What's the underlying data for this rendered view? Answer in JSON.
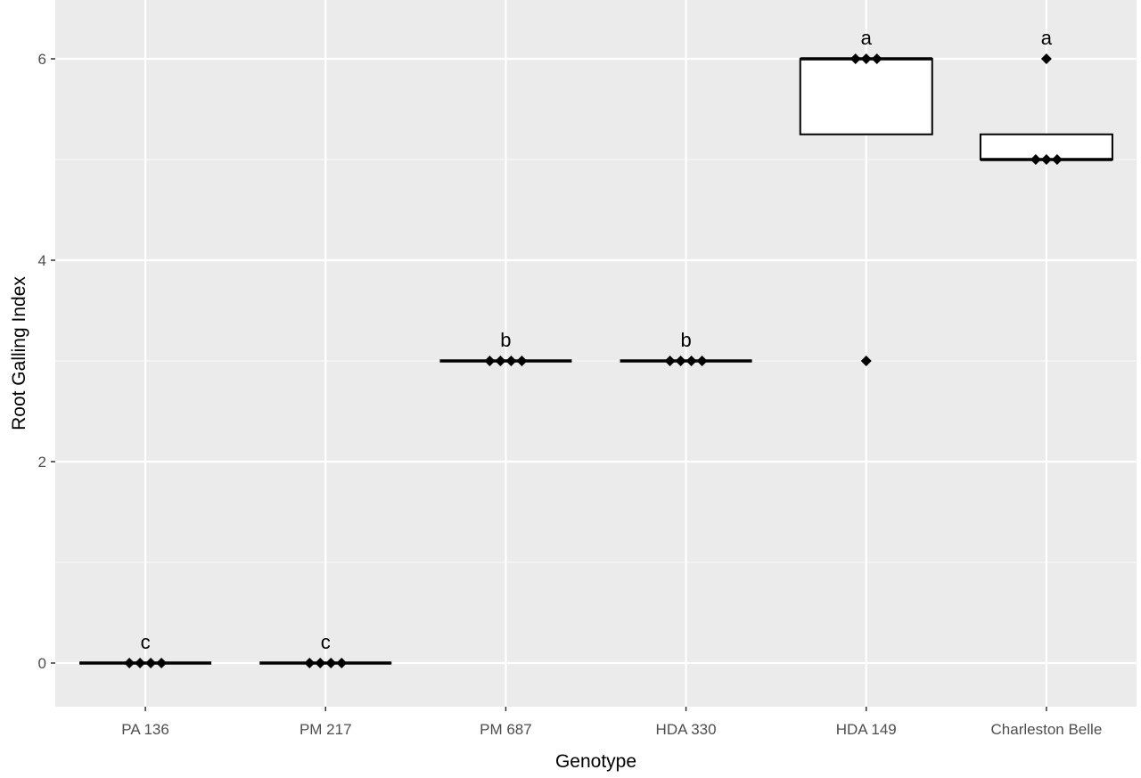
{
  "chart_data": {
    "type": "box",
    "title": "",
    "xlabel": "Genotype",
    "ylabel": "Root Galling Index",
    "categories": [
      "PA 136",
      "PM 217",
      "PM 687",
      "HDA 330",
      "HDA 149",
      "Charleston Belle"
    ],
    "ylim": [
      -0.4,
      6.6
    ],
    "yticks": [
      0,
      2,
      4,
      6
    ],
    "grid": true,
    "boxes": [
      {
        "category": "PA 136",
        "q1": 0,
        "median": 0,
        "q3": 0,
        "points": [
          0,
          0,
          0,
          0
        ],
        "letter": "c"
      },
      {
        "category": "PM 217",
        "q1": 0,
        "median": 0,
        "q3": 0,
        "points": [
          0,
          0,
          0,
          0
        ],
        "letter": "c"
      },
      {
        "category": "PM 687",
        "q1": 3,
        "median": 3,
        "q3": 3,
        "points": [
          3,
          3,
          3,
          3
        ],
        "letter": "b"
      },
      {
        "category": "HDA 330",
        "q1": 3,
        "median": 3,
        "q3": 3,
        "points": [
          3,
          3,
          3,
          3
        ],
        "letter": "b"
      },
      {
        "category": "HDA 149",
        "q1": 5.25,
        "median": 6,
        "q3": 6,
        "points": [
          3,
          6,
          6,
          6
        ],
        "outliers": [
          3
        ],
        "letter": "a"
      },
      {
        "category": "Charleston Belle",
        "q1": 5,
        "median": 5,
        "q3": 5.25,
        "points": [
          5,
          5,
          5,
          6
        ],
        "outliers": [
          6
        ],
        "letter": "a"
      }
    ]
  }
}
